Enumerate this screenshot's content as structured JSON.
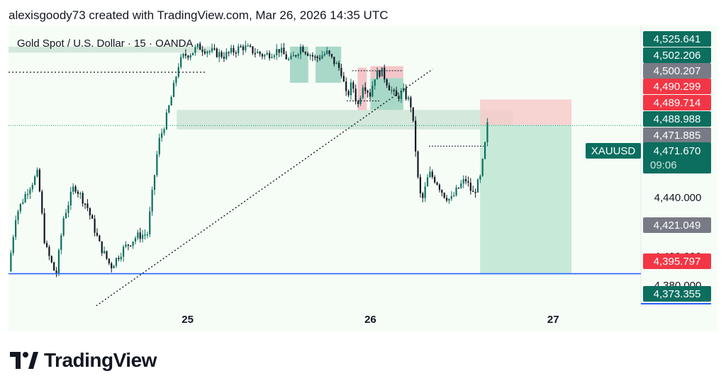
{
  "header": {
    "attribution": "alexisgoody73 created with TradingView.com, Mar 26, 2026 14:35 UTC"
  },
  "brand": {
    "name": "TradingView"
  },
  "colors": {
    "bull": "#0b6e5f",
    "accent": "#089981",
    "bear": "#f23645",
    "neutral": "#787b86",
    "support": "#2962ff"
  },
  "chart_data": {
    "type": "candlestick",
    "instrument": "Gold Spot / U.S. Dollar · 15 · OANDA",
    "symbol": "XAUUSD",
    "last_price": "4,471.670",
    "countdown": "09:06",
    "x_ticks": [
      "25",
      "26",
      "27"
    ],
    "y_ticks": [
      "4,440.000",
      "4,400.000",
      "4,380.000"
    ],
    "price_labels": [
      {
        "text": "4,525.641",
        "kind": "bull"
      },
      {
        "text": "4,502.206",
        "kind": "bull"
      },
      {
        "text": "4,500.207",
        "kind": "neutral"
      },
      {
        "text": "4,490.299",
        "kind": "bear"
      },
      {
        "text": "4,489.714",
        "kind": "bear"
      },
      {
        "text": "4,488.988",
        "kind": "bull"
      },
      {
        "text": "4,471.885",
        "kind": "neutral"
      },
      {
        "text": "4,421.049",
        "kind": "neutral"
      },
      {
        "text": "4,395.797",
        "kind": "bear"
      },
      {
        "text": "4,373.355",
        "kind": "bull"
      }
    ],
    "position": {
      "direction": "short",
      "entry": 4471.9,
      "stop": 4488.9,
      "target": 4373.355
    },
    "support_level": 4373.355,
    "price_path": [
      [
        24.02,
        4375
      ],
      [
        24.06,
        4412
      ],
      [
        24.12,
        4428
      ],
      [
        24.18,
        4440
      ],
      [
        24.22,
        4392
      ],
      [
        24.28,
        4372
      ],
      [
        24.32,
        4410
      ],
      [
        24.38,
        4432
      ],
      [
        24.45,
        4418
      ],
      [
        24.52,
        4392
      ],
      [
        24.58,
        4378
      ],
      [
        24.65,
        4390
      ],
      [
        24.72,
        4398
      ],
      [
        24.78,
        4400
      ],
      [
        24.84,
        4460
      ],
      [
        24.88,
        4475
      ],
      [
        24.92,
        4495
      ],
      [
        24.95,
        4512
      ],
      [
        24.98,
        4518
      ],
      [
        25.02,
        4520
      ],
      [
        25.06,
        4524
      ],
      [
        25.12,
        4521
      ],
      [
        25.2,
        4518
      ],
      [
        25.3,
        4524
      ],
      [
        25.42,
        4518
      ],
      [
        25.5,
        4522
      ],
      [
        25.56,
        4514
      ],
      [
        25.62,
        4524
      ],
      [
        25.7,
        4516
      ],
      [
        25.76,
        4520
      ],
      [
        25.84,
        4508
      ],
      [
        25.87,
        4490
      ],
      [
        25.9,
        4500
      ],
      [
        25.93,
        4484
      ],
      [
        25.96,
        4500
      ],
      [
        26.0,
        4492
      ],
      [
        26.02,
        4504
      ],
      [
        26.06,
        4508
      ],
      [
        26.1,
        4498
      ],
      [
        26.14,
        4490
      ],
      [
        26.18,
        4494
      ],
      [
        26.22,
        4486
      ],
      [
        26.24,
        4466
      ],
      [
        26.26,
        4436
      ],
      [
        26.28,
        4420
      ],
      [
        26.32,
        4440
      ],
      [
        26.36,
        4435
      ],
      [
        26.4,
        4426
      ],
      [
        26.44,
        4422
      ],
      [
        26.48,
        4430
      ],
      [
        26.52,
        4436
      ],
      [
        26.56,
        4426
      ],
      [
        26.6,
        4436
      ],
      [
        26.62,
        4452
      ],
      [
        26.64,
        4471.67
      ]
    ],
    "y_range": [
      4352,
      4538
    ],
    "x_range": [
      24.02,
      27.48
    ]
  }
}
